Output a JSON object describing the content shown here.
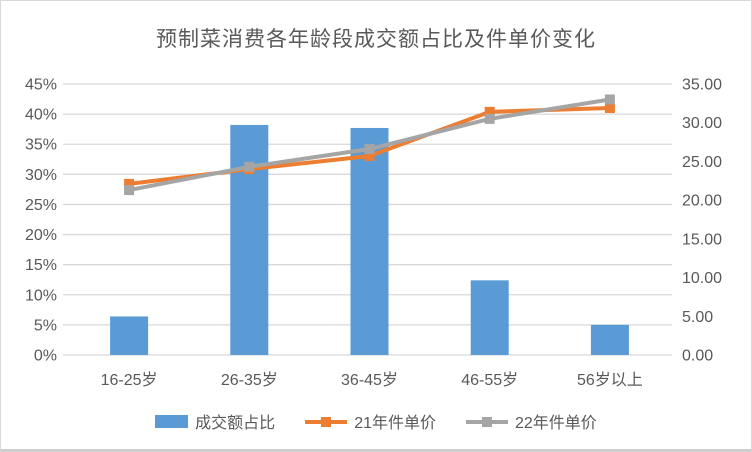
{
  "title": "预制菜消费各年龄段成交额占比及件单价变化",
  "colors": {
    "bar": "#5B9BD5",
    "line_2021": "#ED7D31",
    "line_2022": "#A5A5A5",
    "grid": "#D9D9D9",
    "text": "#595959"
  },
  "chart_data": {
    "type": "combo-bar-line",
    "title": "预制菜消费各年龄段成交额占比及件单价变化",
    "categories": [
      "16-25岁",
      "26-35岁",
      "36-45岁",
      "46-55岁",
      "56岁以上"
    ],
    "bar_series": {
      "name": "成交额占比",
      "axis": "left",
      "unit": "%",
      "values": [
        6.4,
        38.2,
        37.7,
        12.4,
        5.0
      ]
    },
    "line_series": [
      {
        "name": "21年件单价",
        "axis": "right",
        "color_key": "line_2021",
        "values": [
          22.1,
          24.0,
          25.7,
          31.4,
          31.9
        ]
      },
      {
        "name": "22年件单价",
        "axis": "right",
        "color_key": "line_2022",
        "values": [
          21.3,
          24.3,
          26.6,
          30.5,
          33.0
        ]
      }
    ],
    "left_axis": {
      "min": 0,
      "max": 45,
      "step": 5,
      "tick_labels": [
        "0%",
        "5%",
        "10%",
        "15%",
        "20%",
        "25%",
        "30%",
        "35%",
        "40%",
        "45%"
      ]
    },
    "right_axis": {
      "min": 0,
      "max": 35,
      "step": 5,
      "tick_labels": [
        "0.00",
        "5.00",
        "10.00",
        "15.00",
        "20.00",
        "25.00",
        "30.00",
        "35.00"
      ]
    },
    "grid": true,
    "legend_position": "bottom"
  },
  "legend": {
    "items": [
      {
        "label": "成交额占比",
        "type": "bar"
      },
      {
        "label": "21年件单价",
        "type": "line"
      },
      {
        "label": "22年件单价",
        "type": "line"
      }
    ]
  }
}
